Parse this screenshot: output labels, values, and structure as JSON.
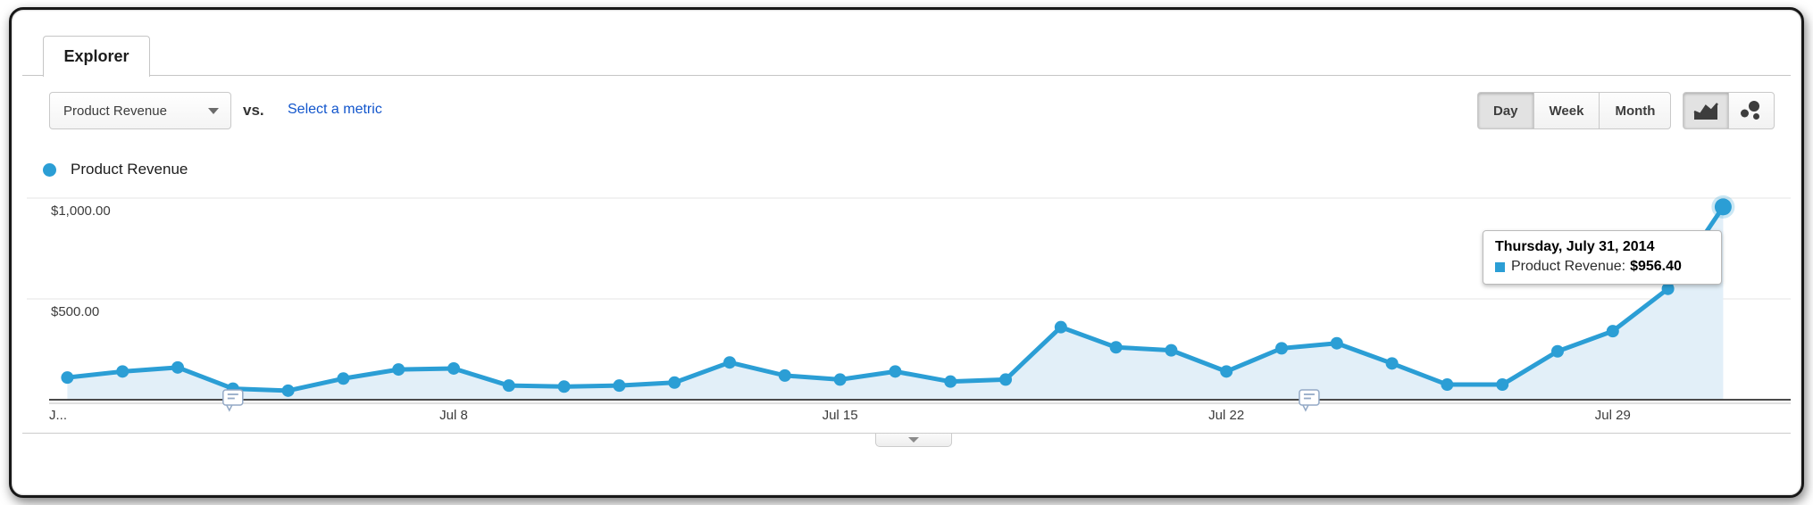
{
  "tab": {
    "label": "Explorer"
  },
  "toolbar": {
    "metric_dropdown": {
      "value": "Product Revenue"
    },
    "vs_label": "vs.",
    "select_metric_link": "Select a metric",
    "granularity": {
      "options": [
        "Day",
        "Week",
        "Month"
      ],
      "selected": "Day"
    },
    "chart_type": {
      "options": [
        "line-chart",
        "motion-chart"
      ],
      "selected": "line-chart"
    }
  },
  "legend": {
    "series_label": "Product Revenue",
    "color": "#2b9ed5"
  },
  "tooltip": {
    "date": "Thursday, July 31, 2014",
    "series_label": "Product Revenue:",
    "value": "$956.40"
  },
  "chart_data": {
    "type": "area",
    "title": "Product Revenue by day",
    "series_name": "Product Revenue",
    "x": [
      "Jul 1",
      "Jul 2",
      "Jul 3",
      "Jul 4",
      "Jul 5",
      "Jul 6",
      "Jul 7",
      "Jul 8",
      "Jul 9",
      "Jul 10",
      "Jul 11",
      "Jul 12",
      "Jul 13",
      "Jul 14",
      "Jul 15",
      "Jul 16",
      "Jul 17",
      "Jul 18",
      "Jul 19",
      "Jul 20",
      "Jul 21",
      "Jul 22",
      "Jul 23",
      "Jul 24",
      "Jul 25",
      "Jul 26",
      "Jul 27",
      "Jul 28",
      "Jul 29",
      "Jul 30",
      "Jul 31"
    ],
    "values": [
      110,
      140,
      160,
      55,
      45,
      105,
      150,
      155,
      70,
      65,
      70,
      85,
      185,
      120,
      100,
      140,
      90,
      100,
      360,
      260,
      245,
      140,
      255,
      280,
      180,
      75,
      75,
      240,
      340,
      550,
      956.4
    ],
    "ylim": [
      0,
      1075
    ],
    "yticks": [
      {
        "value": 500,
        "label": "$500.00"
      },
      {
        "value": 1000,
        "label": "$1,000.00"
      }
    ],
    "xticks": [
      {
        "day": 1,
        "label": "J..."
      },
      {
        "day": 8,
        "label": "Jul 8"
      },
      {
        "day": 15,
        "label": "Jul 15"
      },
      {
        "day": 22,
        "label": "Jul 22"
      },
      {
        "day": 29,
        "label": "Jul 29"
      }
    ],
    "annotations": [
      {
        "day": 4
      },
      {
        "day": 23.5
      }
    ],
    "grid": "horizontal",
    "legend_position": "top-left",
    "colors": {
      "line": "#2b9ed5",
      "fill": "#e2eff8",
      "gridline": "#e4e4e4",
      "baseline": "#4a4a4a",
      "annotation_border": "#93a9c6"
    }
  }
}
